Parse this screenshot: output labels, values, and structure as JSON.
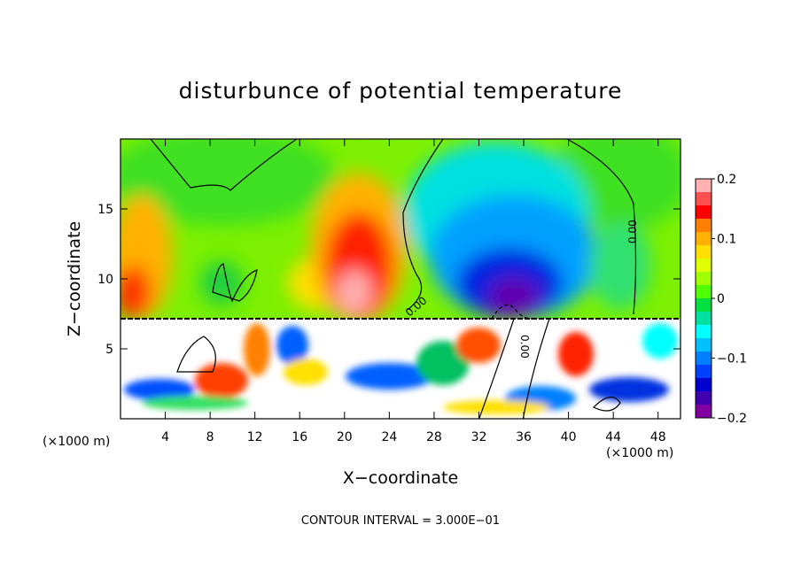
{
  "chart_data": {
    "type": "heatmap",
    "title": "disturbunce of potential temperature",
    "xlabel": "X−coordinate",
    "ylabel": "Z−coordinate",
    "x_unit": "(×1000 m)",
    "z_unit": "(×1000 m)",
    "xlim": [
      0,
      50
    ],
    "ylim": [
      0,
      20
    ],
    "x_ticks": [
      4,
      8,
      12,
      16,
      20,
      24,
      28,
      32,
      36,
      40,
      44,
      48
    ],
    "y_ticks": [
      5,
      10,
      15
    ],
    "colorbar": {
      "range": [
        -0.2,
        0.2
      ],
      "tick_values": [
        0.2,
        0.1,
        0,
        -0.1,
        -0.2
      ],
      "tick_labels": [
        "0.2",
        "0.1",
        "0",
        "−0.1",
        "−0.2"
      ],
      "colors": [
        "#ffb0b0",
        "#ff5050",
        "#ff0000",
        "#ff8000",
        "#ffb000",
        "#ffe000",
        "#e0ff00",
        "#a0ff00",
        "#50ff00",
        "#00e040",
        "#00e0a0",
        "#00ffff",
        "#00c0ff",
        "#0080ff",
        "#0040ff",
        "#0000d0",
        "#4000b0",
        "#8000a0"
      ]
    },
    "contour_interval_text": "CONTOUR INTERVAL = 3.000E−01",
    "contour_labels": [
      "0.00",
      "0.00",
      "0.00"
    ],
    "grid": false,
    "legend": "colorbar-right"
  }
}
